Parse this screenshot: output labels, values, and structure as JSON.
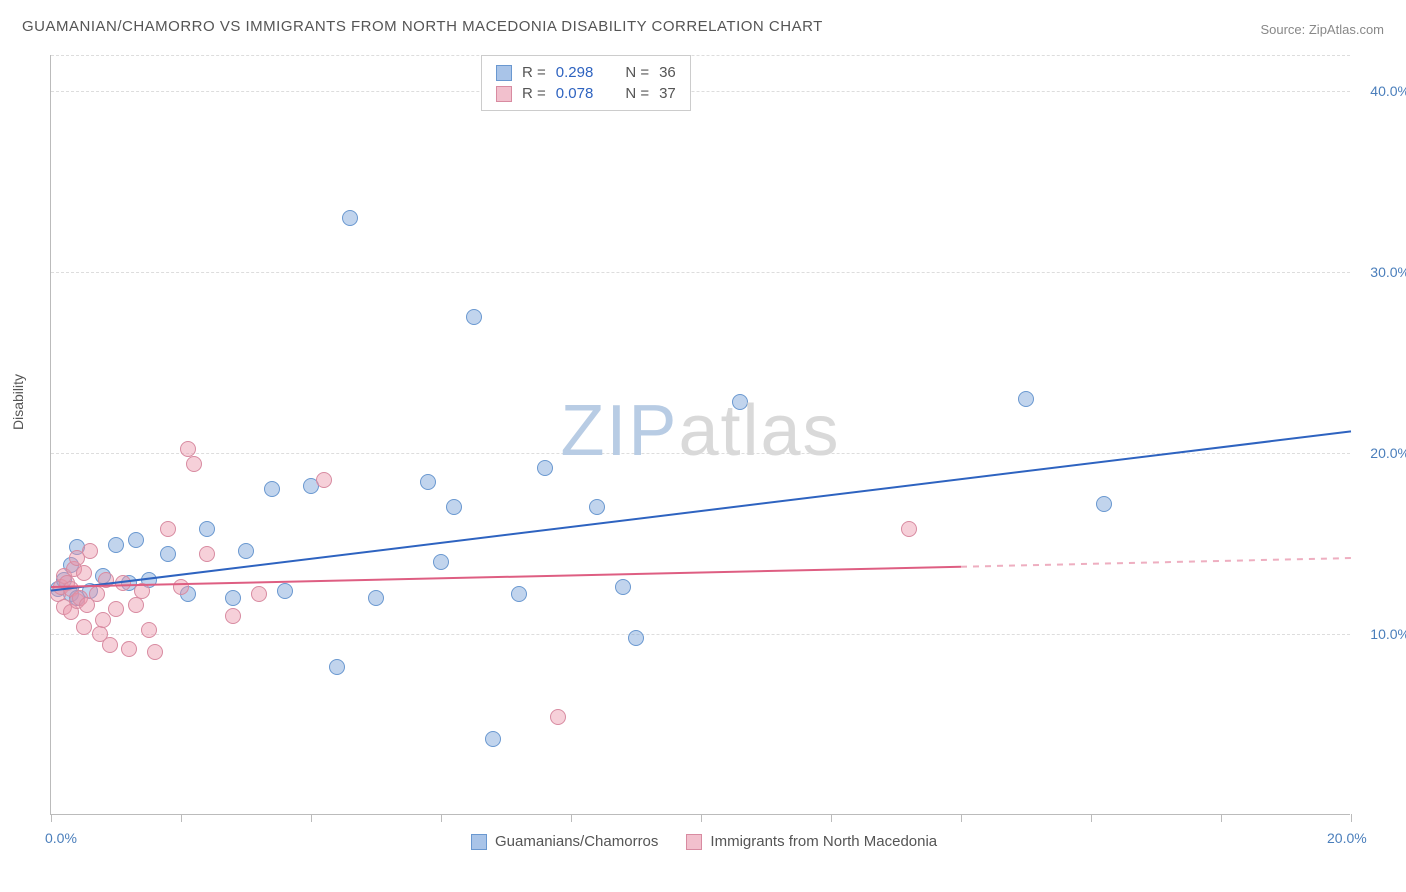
{
  "title": "GUAMANIAN/CHAMORRO VS IMMIGRANTS FROM NORTH MACEDONIA DISABILITY CORRELATION CHART",
  "source": "Source: ZipAtlas.com",
  "ylabel": "Disability",
  "watermark_zip": "ZIP",
  "watermark_atlas": "atlas",
  "chart": {
    "type": "scatter",
    "background_color": "#ffffff",
    "grid_color": "#dddddd",
    "axis_color": "#bbbbbb",
    "xlim": [
      0,
      20
    ],
    "ylim": [
      0,
      42
    ],
    "xtick_positions": [
      0,
      2,
      4,
      6,
      8,
      10,
      12,
      14,
      16,
      18,
      20
    ],
    "xtick_labels": {
      "0": "0.0%",
      "20": "20.0%"
    },
    "ytick_gridlines": [
      10,
      20,
      30,
      40
    ],
    "ytick_labels": {
      "10": "10.0%",
      "20": "20.0%",
      "30": "30.0%",
      "40": "40.0%"
    },
    "tick_label_color": "#4a7ebb",
    "tick_label_fontsize": 14,
    "marker_size": 16,
    "series": [
      {
        "name": "Guamanians/Chamorros",
        "label": "Guamanians/Chamorros",
        "fill_color": "rgba(118,160,215,0.45)",
        "stroke_color": "#6a98d0",
        "swatch_fill": "#a9c4e8",
        "swatch_border": "#6a98d0",
        "R_label": "R = ",
        "R_value": "0.298",
        "N_label": "N = ",
        "N_value": "36",
        "trend": {
          "x1": 0,
          "y1": 12.4,
          "x2": 20,
          "y2": 21.2,
          "solid_until_x": 20,
          "color": "#2e63c0",
          "width": 2
        },
        "points": [
          [
            0.1,
            12.5
          ],
          [
            0.2,
            13.0
          ],
          [
            0.3,
            12.2
          ],
          [
            0.3,
            13.8
          ],
          [
            0.4,
            12.0
          ],
          [
            0.4,
            14.8
          ],
          [
            0.6,
            12.4
          ],
          [
            0.8,
            13.2
          ],
          [
            1.0,
            14.9
          ],
          [
            1.2,
            12.8
          ],
          [
            1.3,
            15.2
          ],
          [
            1.5,
            13.0
          ],
          [
            1.8,
            14.4
          ],
          [
            2.1,
            12.2
          ],
          [
            2.4,
            15.8
          ],
          [
            2.8,
            12.0
          ],
          [
            3.0,
            14.6
          ],
          [
            3.4,
            18.0
          ],
          [
            3.6,
            12.4
          ],
          [
            4.0,
            18.2
          ],
          [
            4.4,
            8.2
          ],
          [
            4.6,
            33.0
          ],
          [
            5.0,
            12.0
          ],
          [
            5.8,
            18.4
          ],
          [
            6.0,
            14.0
          ],
          [
            6.2,
            17.0
          ],
          [
            6.5,
            27.5
          ],
          [
            6.8,
            4.2
          ],
          [
            7.2,
            12.2
          ],
          [
            7.6,
            19.2
          ],
          [
            8.4,
            17.0
          ],
          [
            8.8,
            12.6
          ],
          [
            9.0,
            9.8
          ],
          [
            10.6,
            22.8
          ],
          [
            15.0,
            23.0
          ],
          [
            16.2,
            17.2
          ]
        ]
      },
      {
        "name": "Immigrants from North Macedonia",
        "label": "Immigrants from North Macedonia",
        "fill_color": "rgba(235,150,170,0.45)",
        "stroke_color": "#d88ba1",
        "swatch_fill": "#f2c0cd",
        "swatch_border": "#d88ba1",
        "R_label": "R = ",
        "R_value": "0.078",
        "N_label": "N = ",
        "N_value": "37",
        "trend": {
          "x1": 0,
          "y1": 12.6,
          "x2": 20,
          "y2": 14.2,
          "solid_until_x": 14,
          "color": "#de5e82",
          "width": 2
        },
        "points": [
          [
            0.1,
            12.2
          ],
          [
            0.15,
            12.6
          ],
          [
            0.2,
            11.5
          ],
          [
            0.2,
            13.2
          ],
          [
            0.25,
            12.8
          ],
          [
            0.3,
            11.2
          ],
          [
            0.3,
            12.5
          ],
          [
            0.35,
            13.6
          ],
          [
            0.4,
            11.8
          ],
          [
            0.4,
            14.2
          ],
          [
            0.45,
            12.0
          ],
          [
            0.5,
            10.4
          ],
          [
            0.5,
            13.4
          ],
          [
            0.55,
            11.6
          ],
          [
            0.6,
            14.6
          ],
          [
            0.7,
            12.2
          ],
          [
            0.75,
            10.0
          ],
          [
            0.8,
            10.8
          ],
          [
            0.85,
            13.0
          ],
          [
            0.9,
            9.4
          ],
          [
            1.0,
            11.4
          ],
          [
            1.1,
            12.8
          ],
          [
            1.2,
            9.2
          ],
          [
            1.3,
            11.6
          ],
          [
            1.4,
            12.4
          ],
          [
            1.5,
            10.2
          ],
          [
            1.6,
            9.0
          ],
          [
            1.8,
            15.8
          ],
          [
            2.0,
            12.6
          ],
          [
            2.1,
            20.2
          ],
          [
            2.2,
            19.4
          ],
          [
            2.4,
            14.4
          ],
          [
            2.8,
            11.0
          ],
          [
            3.2,
            12.2
          ],
          [
            4.2,
            18.5
          ],
          [
            7.8,
            5.4
          ],
          [
            13.2,
            15.8
          ]
        ]
      }
    ],
    "legend_top": {
      "R_color": "#2e63c0",
      "N_color": "#555555",
      "text_color": "#555555"
    },
    "legend_bottom_text_color": "#555555"
  }
}
